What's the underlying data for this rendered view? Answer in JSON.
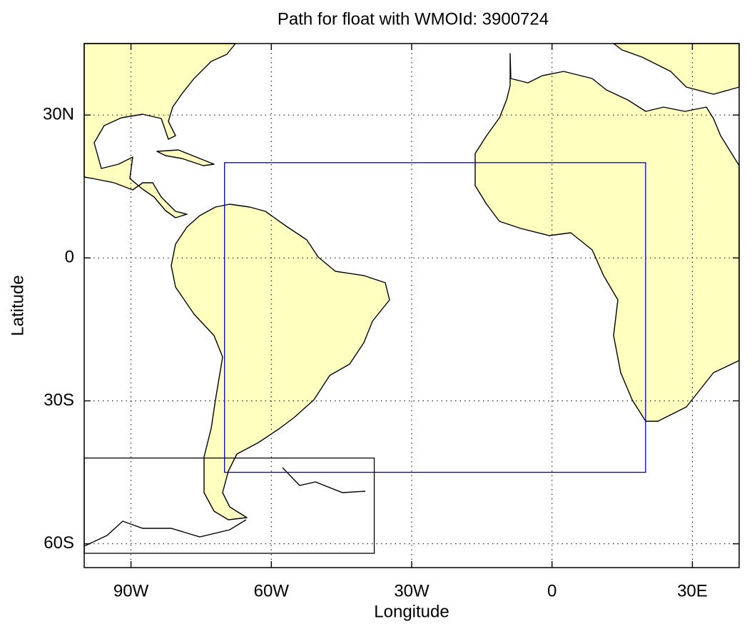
{
  "chart_data": {
    "type": "map",
    "title": "Path for float with WMOId: 3900724",
    "xlabel": "Longitude",
    "ylabel": "Latitude",
    "xlim": [
      -100,
      40
    ],
    "ylim": [
      -65,
      45
    ],
    "xticks": [
      {
        "value": -90,
        "label": "90W"
      },
      {
        "value": -60,
        "label": "60W"
      },
      {
        "value": -30,
        "label": "30W"
      },
      0,
      {
        "value": 30,
        "label": "30E"
      }
    ],
    "yticks": [
      {
        "value": -60,
        "label": "60S"
      },
      {
        "value": -30,
        "label": "30S"
      },
      0,
      {
        "value": 30,
        "label": "30N"
      }
    ],
    "grid": true,
    "land_color": "#ffffc0",
    "regions": [
      {
        "color": "#0000cc",
        "lon": [
          -70,
          20
        ],
        "lat": [
          -45,
          20
        ]
      },
      {
        "color": "#000000",
        "lon": [
          -100,
          -38
        ],
        "lat": [
          -62,
          -42
        ]
      }
    ]
  }
}
